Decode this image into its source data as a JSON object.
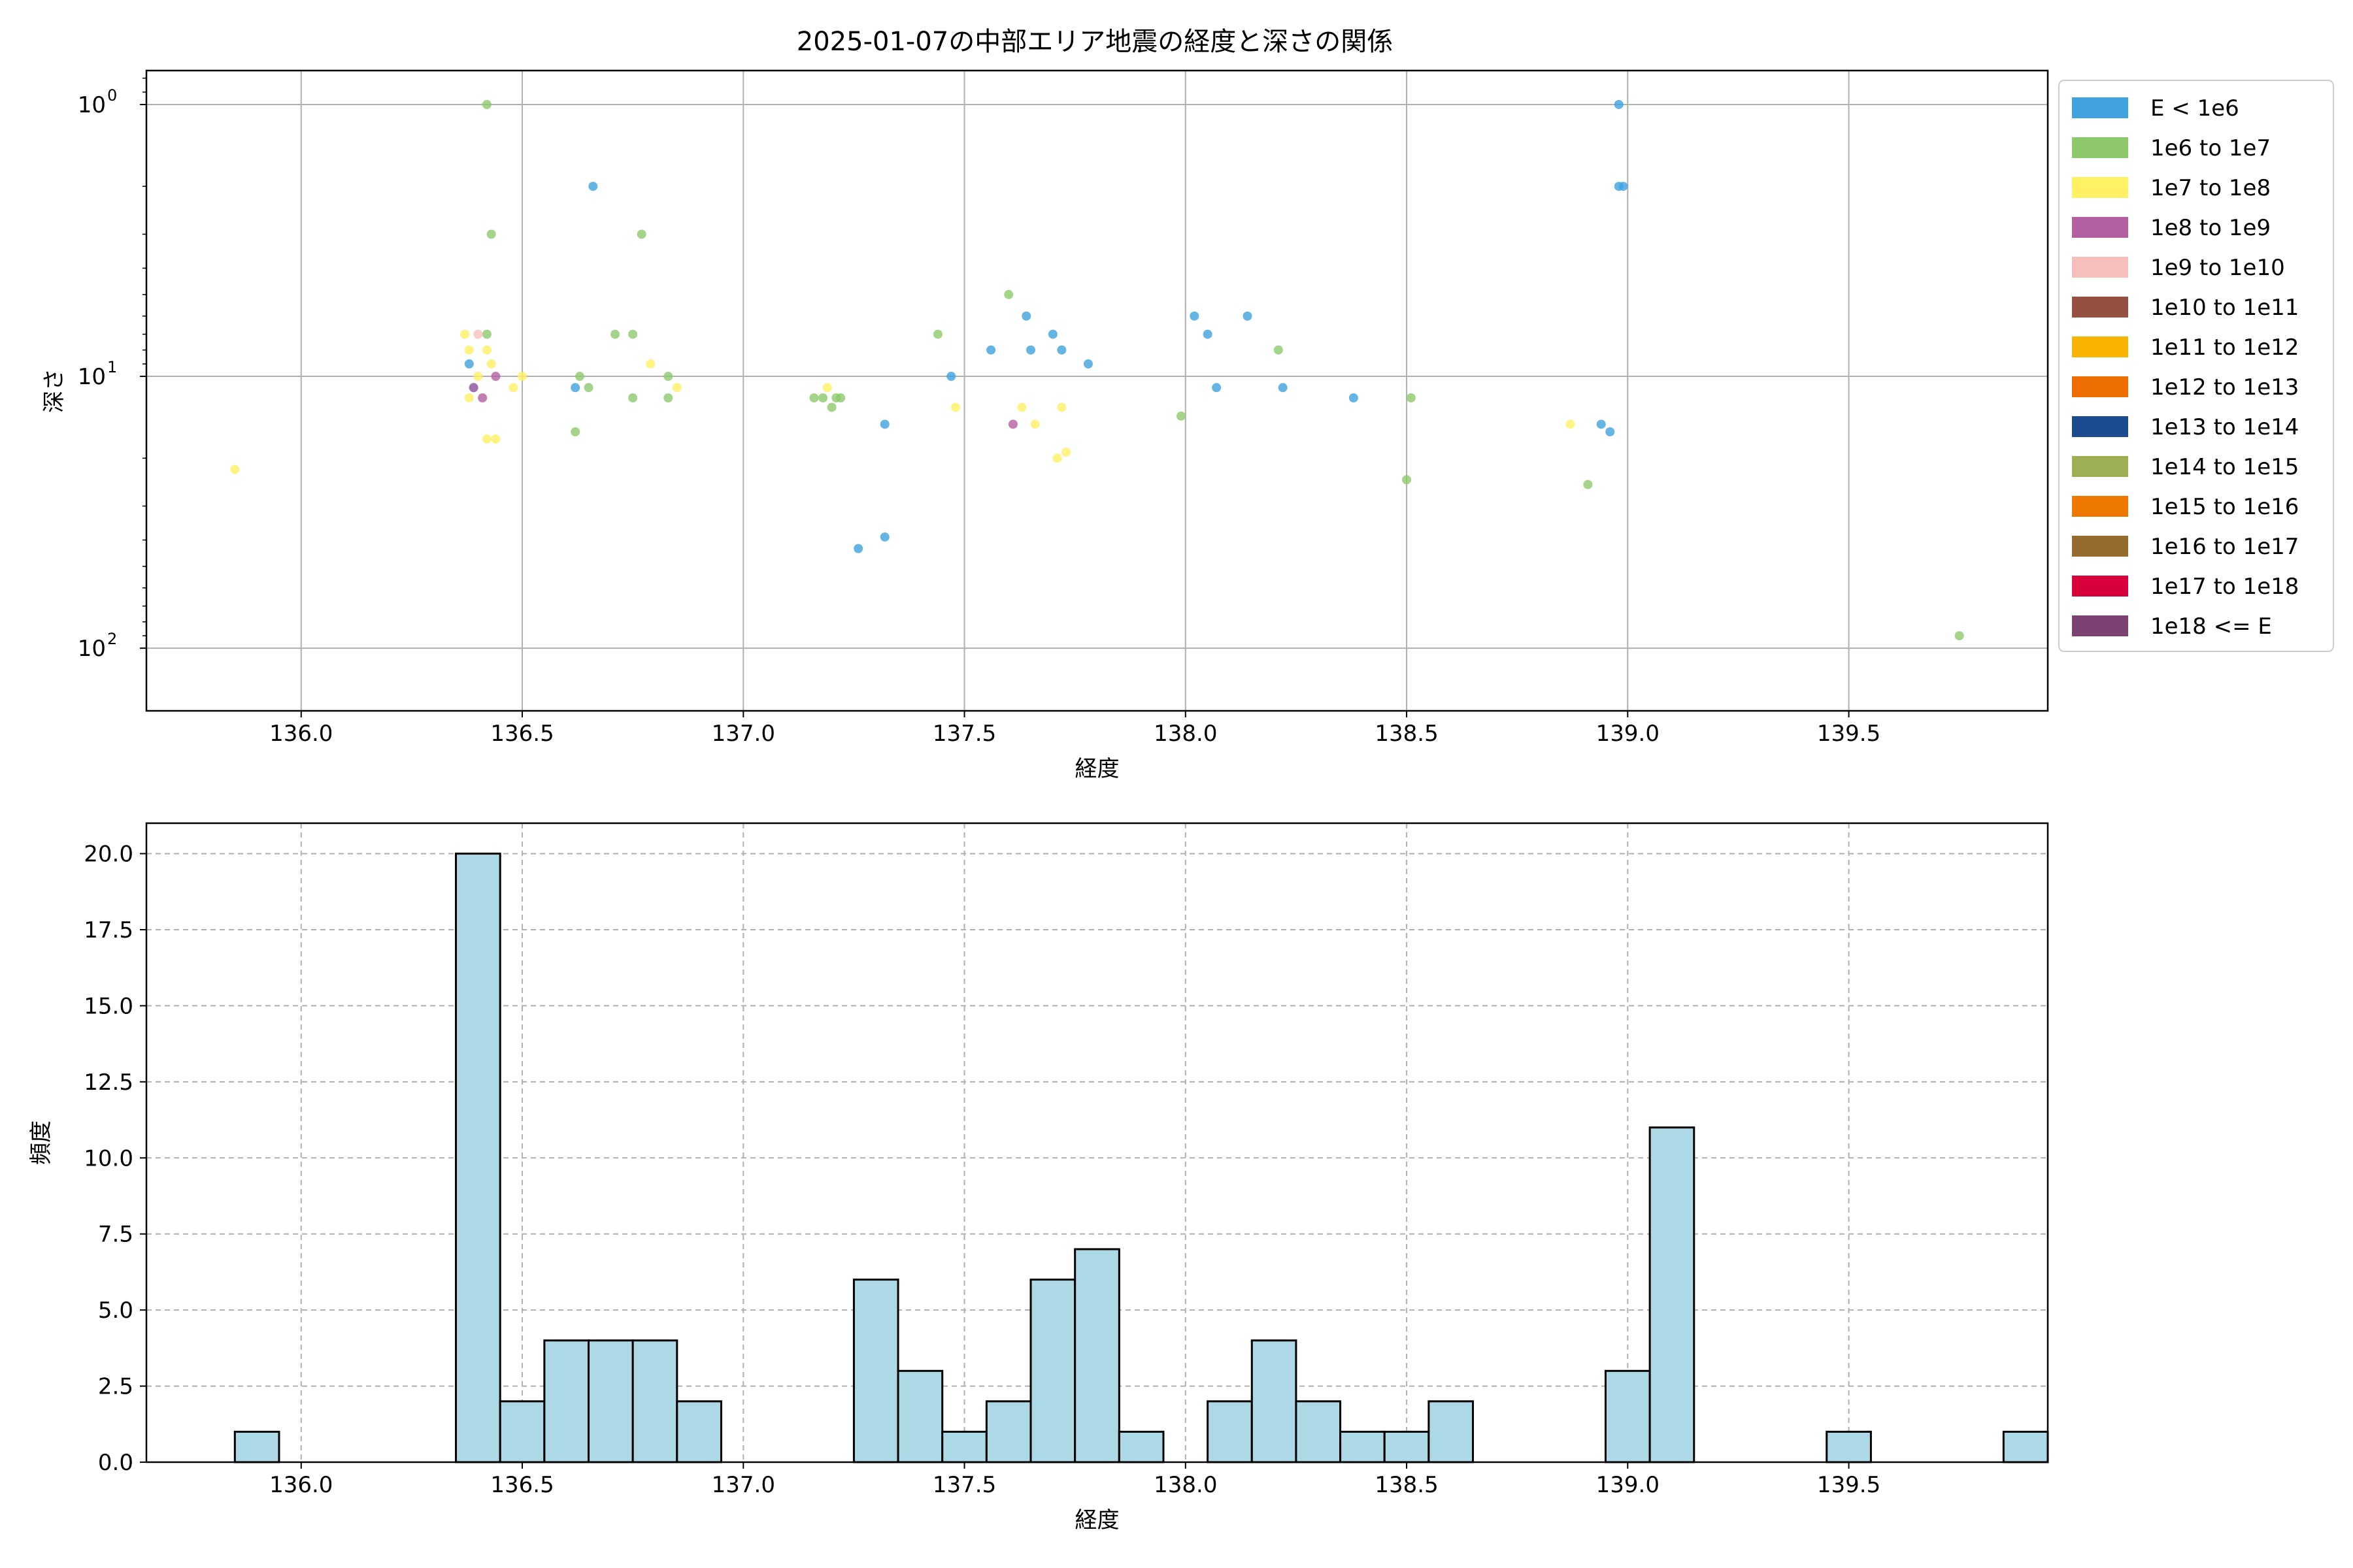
{
  "figure_title": "2025-01-07の中部エリア地震の経度と深さの関係",
  "chart_data": [
    {
      "type": "scatter",
      "xlabel": "経度",
      "ylabel": "深さ",
      "y_scale": "log",
      "y_inverted": true,
      "xlim": [
        135.65,
        139.95
      ],
      "ylim": [
        0.75,
        170
      ],
      "x_ticks": [
        "136.0",
        "136.5",
        "137.0",
        "137.5",
        "138.0",
        "138.5",
        "139.0",
        "139.5"
      ],
      "y_ticks": [
        {
          "base": "10",
          "exp": "0",
          "value": 1
        },
        {
          "base": "10",
          "exp": "1",
          "value": 10
        },
        {
          "base": "10",
          "exp": "2",
          "value": 100
        }
      ],
      "grid": true,
      "legend_position": "outside-right",
      "series": [
        {
          "name": "E < 1e6",
          "color": "#3fa2dd",
          "points": [
            [
              136.38,
              9
            ],
            [
              136.39,
              11
            ],
            [
              136.62,
              11
            ],
            [
              136.66,
              2
            ],
            [
              137.26,
              43
            ],
            [
              137.32,
              15
            ],
            [
              137.32,
              39
            ],
            [
              137.47,
              10
            ],
            [
              137.56,
              8
            ],
            [
              137.64,
              6
            ],
            [
              137.65,
              8
            ],
            [
              137.7,
              7
            ],
            [
              137.72,
              8
            ],
            [
              137.78,
              9
            ],
            [
              138.02,
              6
            ],
            [
              138.05,
              7
            ],
            [
              138.07,
              11
            ],
            [
              138.14,
              6
            ],
            [
              138.22,
              11
            ],
            [
              138.38,
              12
            ],
            [
              138.94,
              15
            ],
            [
              138.96,
              16
            ],
            [
              138.98,
              1
            ],
            [
              138.98,
              2
            ],
            [
              138.99,
              2
            ]
          ]
        },
        {
          "name": "1e6 to 1e7",
          "color": "#8dc96b",
          "points": [
            [
              136.42,
              7
            ],
            [
              136.42,
              1
            ],
            [
              136.43,
              3
            ],
            [
              136.62,
              16
            ],
            [
              136.63,
              10
            ],
            [
              136.65,
              11
            ],
            [
              136.71,
              7
            ],
            [
              136.75,
              7
            ],
            [
              136.75,
              12
            ],
            [
              136.77,
              3
            ],
            [
              136.83,
              12
            ],
            [
              136.83,
              10
            ],
            [
              137.16,
              12
            ],
            [
              137.18,
              12
            ],
            [
              137.2,
              13
            ],
            [
              137.21,
              12
            ],
            [
              137.22,
              12
            ],
            [
              137.44,
              7
            ],
            [
              137.6,
              5
            ],
            [
              137.99,
              14
            ],
            [
              138.21,
              8
            ],
            [
              138.5,
              24
            ],
            [
              138.51,
              12
            ],
            [
              138.91,
              25
            ],
            [
              139.75,
              90
            ]
          ]
        },
        {
          "name": "1e7 to 1e8",
          "color": "#fff064",
          "points": [
            [
              135.85,
              22
            ],
            [
              136.37,
              7
            ],
            [
              136.38,
              12
            ],
            [
              136.38,
              8
            ],
            [
              136.4,
              10
            ],
            [
              136.42,
              8
            ],
            [
              136.42,
              17
            ],
            [
              136.43,
              9
            ],
            [
              136.44,
              17
            ],
            [
              136.48,
              11
            ],
            [
              136.5,
              10
            ],
            [
              136.79,
              9
            ],
            [
              136.85,
              11
            ],
            [
              137.19,
              11
            ],
            [
              137.48,
              13
            ],
            [
              137.63,
              13
            ],
            [
              137.66,
              15
            ],
            [
              137.71,
              20
            ],
            [
              137.72,
              13
            ],
            [
              137.73,
              19
            ],
            [
              138.87,
              15
            ]
          ]
        },
        {
          "name": "1e8 to 1e9",
          "color": "#b45fa1",
          "points": [
            [
              136.39,
              11
            ],
            [
              136.41,
              12
            ],
            [
              136.44,
              10
            ],
            [
              137.61,
              15
            ]
          ]
        },
        {
          "name": "1e9 to 1e10",
          "color": "#f6bfbc",
          "points": [
            [
              136.4,
              7
            ]
          ]
        },
        {
          "name": "1e10 to 1e11",
          "color": "#965042",
          "points": []
        },
        {
          "name": "1e11 to 1e12",
          "color": "#f7b400",
          "points": []
        },
        {
          "name": "1e12 to 1e13",
          "color": "#ed6d00",
          "points": []
        },
        {
          "name": "1e13 to 1e14",
          "color": "#1d4b8f",
          "points": []
        },
        {
          "name": "1e14 to 1e15",
          "color": "#9caf52",
          "points": []
        },
        {
          "name": "1e15 to 1e16",
          "color": "#ee7800",
          "points": []
        },
        {
          "name": "1e16 to 1e17",
          "color": "#956a2d",
          "points": []
        },
        {
          "name": "1e17 to 1e18",
          "color": "#d7003a",
          "points": []
        },
        {
          "name": "1e18 <= E",
          "color": "#7a4171",
          "points": []
        }
      ]
    },
    {
      "type": "bar",
      "subtype": "histogram",
      "xlabel": "経度",
      "ylabel": "頻度",
      "xlim": [
        135.65,
        139.95
      ],
      "ylim": [
        0,
        21
      ],
      "x_ticks": [
        "136.0",
        "136.5",
        "137.0",
        "137.5",
        "138.0",
        "138.5",
        "139.0",
        "139.5"
      ],
      "y_ticks": [
        "0.0",
        "2.5",
        "5.0",
        "7.5",
        "10.0",
        "12.5",
        "15.0",
        "17.5",
        "20.0"
      ],
      "grid": "dashed",
      "bar_color": "#add8e6",
      "edge_color": "#000000",
      "bin_start": 135.85,
      "bin_width": 0.1,
      "counts": [
        1,
        0,
        0,
        0,
        0,
        20,
        2,
        4,
        4,
        4,
        2,
        0,
        0,
        0,
        6,
        3,
        1,
        2,
        6,
        7,
        1,
        0,
        2,
        4,
        2,
        1,
        1,
        2,
        0,
        0,
        0,
        3,
        11,
        0,
        0,
        0,
        1,
        0,
        0,
        0,
        1
      ]
    }
  ]
}
